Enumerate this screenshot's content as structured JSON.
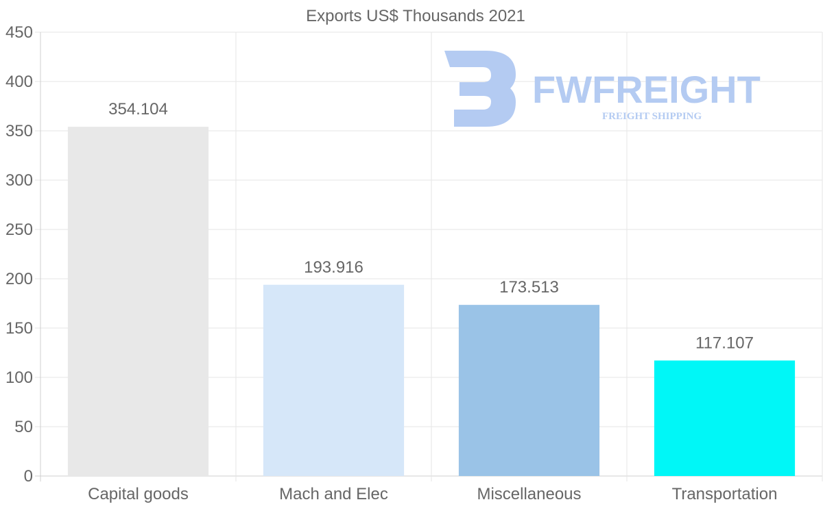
{
  "chart_data": {
    "type": "bar",
    "title": "Exports US$ Thousands 2021",
    "categories": [
      "Capital goods",
      "Mach and Elec",
      "Miscellaneous",
      "Transportation"
    ],
    "values": [
      354.104,
      193.916,
      173.513,
      117.107
    ],
    "data_labels": [
      "354.104",
      "193.916",
      "173.513",
      "117.107"
    ],
    "colors": [
      "#e8e8e8",
      "#d6e7f9",
      "#9ac3e7",
      "#00f7f7"
    ],
    "ylim": [
      0,
      450
    ],
    "yticks": [
      0,
      50,
      100,
      150,
      200,
      250,
      300,
      350,
      400,
      450
    ],
    "grid": true,
    "xlabel": "",
    "ylabel": ""
  },
  "watermark": {
    "name": "FWFREIGHT",
    "tagline": "FREIGHT SHIPPING",
    "color": "#b4cbf2"
  }
}
